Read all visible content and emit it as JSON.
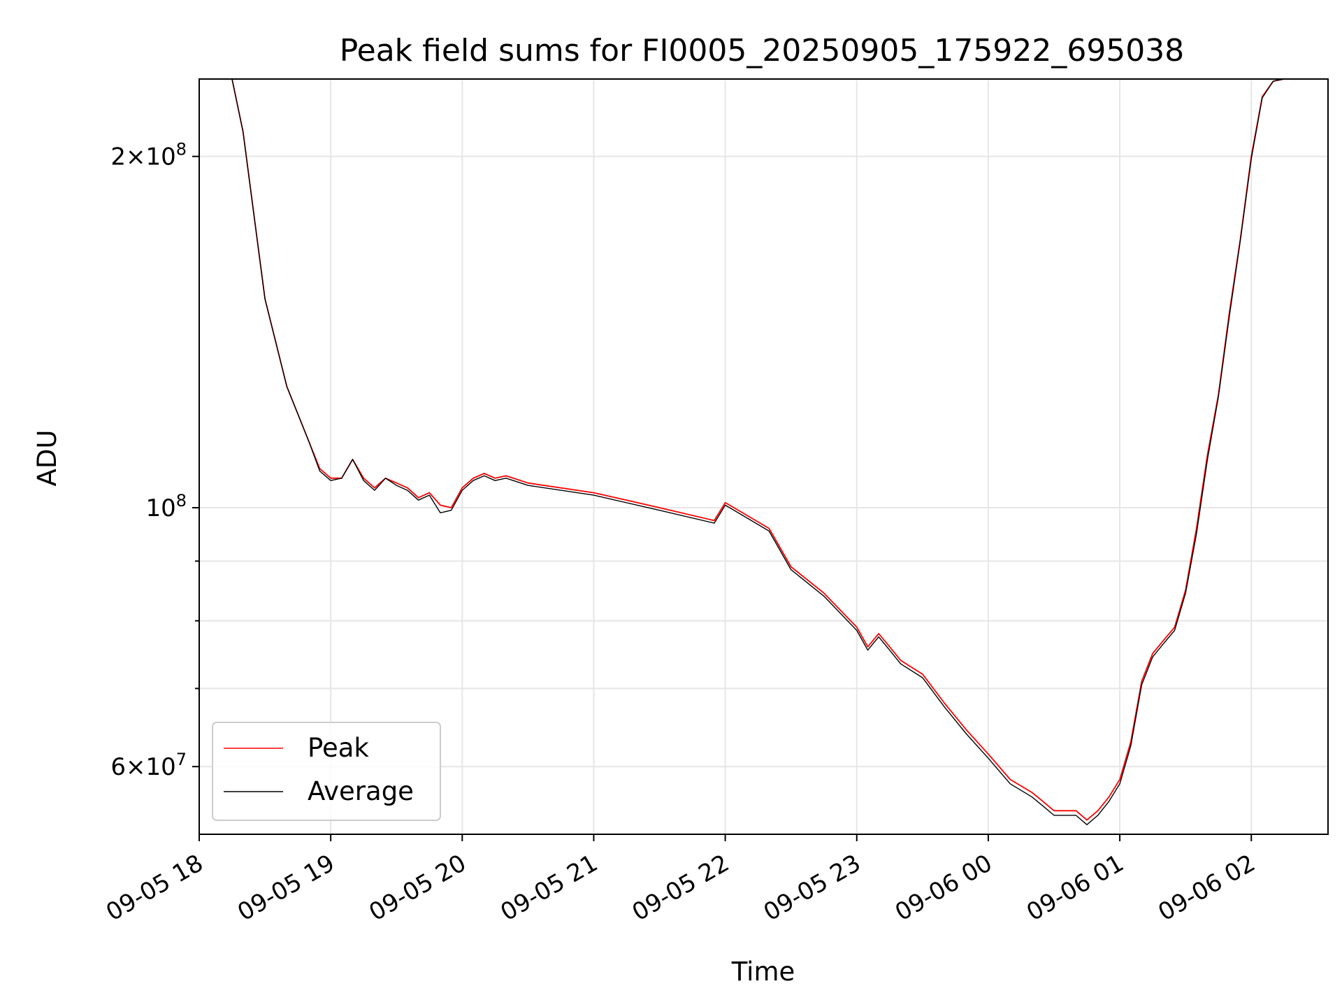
{
  "chart_data": {
    "type": "line",
    "title": "Peak field sums for FI0005_20250905_175922_695038",
    "xlabel": "Time",
    "ylabel": "ADU",
    "yscale": "log",
    "xlim": [
      "09-05 18:00",
      "09-06 02:35"
    ],
    "ylim": [
      52500000,
      233000000
    ],
    "grid": true,
    "legend": "lower-left",
    "x_ticks": [
      "09-05 18",
      "09-05 19",
      "09-05 20",
      "09-05 21",
      "09-05 22",
      "09-05 23",
      "09-06 00",
      "09-06 01",
      "09-06 02"
    ],
    "y_ticks": [
      {
        "value": 200000000,
        "base": "2×10",
        "exp": "8"
      },
      {
        "value": 100000000,
        "base": "10",
        "exp": "8"
      },
      {
        "value": 60000000,
        "base": "6×10",
        "exp": "7"
      }
    ],
    "y_minor_ticks": [
      70000000,
      80000000,
      90000000
    ],
    "x": [
      "09-05 18:00",
      "09-05 18:15",
      "09-05 18:20",
      "09-05 18:30",
      "09-05 18:40",
      "09-05 18:50",
      "09-05 18:55",
      "09-05 19:00",
      "09-05 19:05",
      "09-05 19:10",
      "09-05 19:15",
      "09-05 19:20",
      "09-05 19:25",
      "09-05 19:30",
      "09-05 19:35",
      "09-05 19:40",
      "09-05 19:45",
      "09-05 19:50",
      "09-05 19:55",
      "09-05 20:00",
      "09-05 20:05",
      "09-05 20:10",
      "09-05 20:15",
      "09-05 20:20",
      "09-05 20:30",
      "09-05 21:00",
      "09-05 21:30",
      "09-05 21:55",
      "09-05 22:00",
      "09-05 22:02",
      "09-05 22:20",
      "09-05 22:30",
      "09-05 22:45",
      "09-05 23:00",
      "09-05 23:05",
      "09-05 23:10",
      "09-05 23:15",
      "09-05 23:20",
      "09-05 23:30",
      "09-05 23:40",
      "09-05 23:50",
      "09-06 00:00",
      "09-06 00:10",
      "09-06 00:20",
      "09-06 00:25",
      "09-06 00:30",
      "09-06 00:40",
      "09-06 00:45",
      "09-06 00:50",
      "09-06 00:55",
      "09-06 01:00",
      "09-06 01:05",
      "09-06 01:10",
      "09-06 01:15",
      "09-06 01:20",
      "09-06 01:25",
      "09-06 01:30",
      "09-06 01:35",
      "09-06 01:40",
      "09-06 01:45",
      "09-06 01:50",
      "09-06 01:55",
      "09-06 02:00",
      "09-06 02:05",
      "09-06 02:10",
      "09-06 02:15",
      "09-06 02:20",
      "09-06 02:35"
    ],
    "series": [
      {
        "name": "Peak",
        "color": "#ff0000",
        "values": [
          233000000,
          233000000,
          210000000,
          151000000,
          127000000,
          114000000,
          108000000,
          106000000,
          106000000,
          110000000,
          106000000,
          104000000,
          106000000,
          105000000,
          104000000,
          102000000,
          103000000,
          100500000,
          100000000,
          104000000,
          106000000,
          107000000,
          106000000,
          106500000,
          105000000,
          103000000,
          100000000,
          97500000,
          101000000,
          100500000,
          96000000,
          89000000,
          84500000,
          79000000,
          76000000,
          78000000,
          76000000,
          74000000,
          72000000,
          68000000,
          64500000,
          61500000,
          58500000,
          57000000,
          56000000,
          55000000,
          55000000,
          54000000,
          55000000,
          56500000,
          58500000,
          63000000,
          71000000,
          75000000,
          77000000,
          79000000,
          85000000,
          96000000,
          111000000,
          125000000,
          147000000,
          170000000,
          200000000,
          225000000,
          232000000,
          233000000,
          233000000,
          233000000
        ]
      },
      {
        "name": "Average",
        "color": "#000000",
        "values": [
          233000000,
          233000000,
          210000000,
          151000000,
          127000000,
          114000000,
          107500000,
          105500000,
          106000000,
          110000000,
          105500000,
          103500000,
          106000000,
          104500000,
          103500000,
          101500000,
          102500000,
          99000000,
          99500000,
          103500000,
          105500000,
          106500000,
          105500000,
          106000000,
          104500000,
          102500000,
          99500000,
          97000000,
          100500000,
          100000000,
          95500000,
          88500000,
          84000000,
          78500000,
          75500000,
          77500000,
          75500000,
          73500000,
          71500000,
          67500000,
          64000000,
          61000000,
          58000000,
          56500000,
          55500000,
          54500000,
          54500000,
          53500000,
          54500000,
          56000000,
          58000000,
          62500000,
          70500000,
          74500000,
          76500000,
          78500000,
          84500000,
          95000000,
          110000000,
          124500000,
          146000000,
          169500000,
          199000000,
          224500000,
          232000000,
          233000000,
          233000000,
          233000000
        ]
      }
    ]
  }
}
